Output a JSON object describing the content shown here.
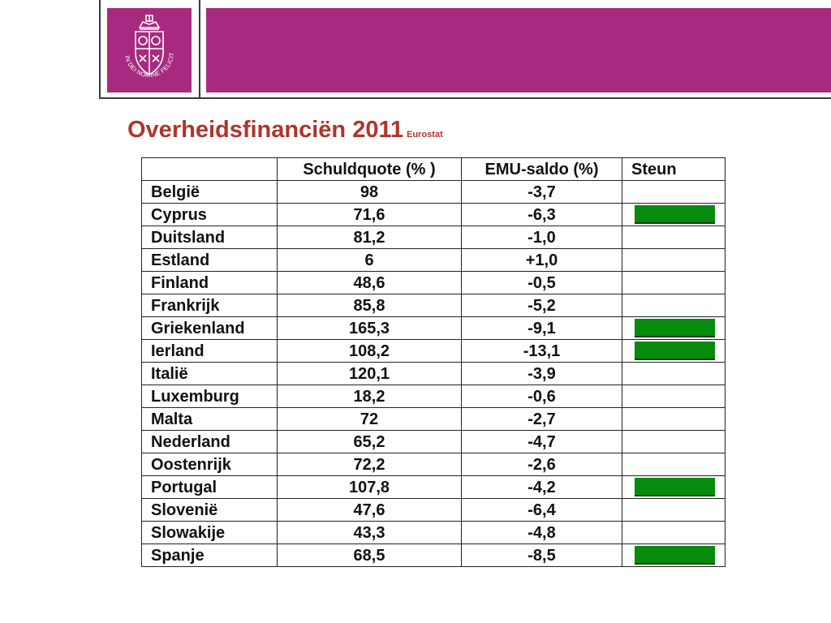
{
  "header": {
    "logo_text": "IN DEI NOMINE FELICITER",
    "brand_color": "#a72a80"
  },
  "title": {
    "main": "Overheidsfinanciën 2011",
    "source": "Eurostat",
    "color": "#b0342a"
  },
  "table": {
    "columns": [
      "",
      "Schuldquote (% )",
      "EMU-saldo (%)",
      "Steun"
    ],
    "marker_color": "#078b0c",
    "rows": [
      {
        "country": "België",
        "debt": "98",
        "emu": "-3,7",
        "aid": false
      },
      {
        "country": "Cyprus",
        "debt": "71,6",
        "emu": "-6,3",
        "aid": true
      },
      {
        "country": "Duitsland",
        "debt": "81,2",
        "emu": "-1,0",
        "aid": false
      },
      {
        "country": "Estland",
        "debt": "6",
        "emu": "+1,0",
        "aid": false
      },
      {
        "country": "Finland",
        "debt": "48,6",
        "emu": "-0,5",
        "aid": false
      },
      {
        "country": "Frankrijk",
        "debt": "85,8",
        "emu": "-5,2",
        "aid": false
      },
      {
        "country": "Griekenland",
        "debt": "165,3",
        "emu": "-9,1",
        "aid": true
      },
      {
        "country": "Ierland",
        "debt": "108,2",
        "emu": "-13,1",
        "aid": true
      },
      {
        "country": "Italië",
        "debt": "120,1",
        "emu": "-3,9",
        "aid": false
      },
      {
        "country": "Luxemburg",
        "debt": "18,2",
        "emu": "-0,6",
        "aid": false
      },
      {
        "country": "Malta",
        "debt": "72",
        "emu": "-2,7",
        "aid": false
      },
      {
        "country": "Nederland",
        "debt": "65,2",
        "emu": "-4,7",
        "aid": false
      },
      {
        "country": "Oostenrijk",
        "debt": "72,2",
        "emu": "-2,6",
        "aid": false
      },
      {
        "country": "Portugal",
        "debt": "107,8",
        "emu": "-4,2",
        "aid": true
      },
      {
        "country": "Slovenië",
        "debt": "47,6",
        "emu": "-6,4",
        "aid": false
      },
      {
        "country": "Slowakije",
        "debt": "43,3",
        "emu": "-4,8",
        "aid": false
      },
      {
        "country": "Spanje",
        "debt": "68,5",
        "emu": "-8,5",
        "aid": true
      }
    ]
  }
}
